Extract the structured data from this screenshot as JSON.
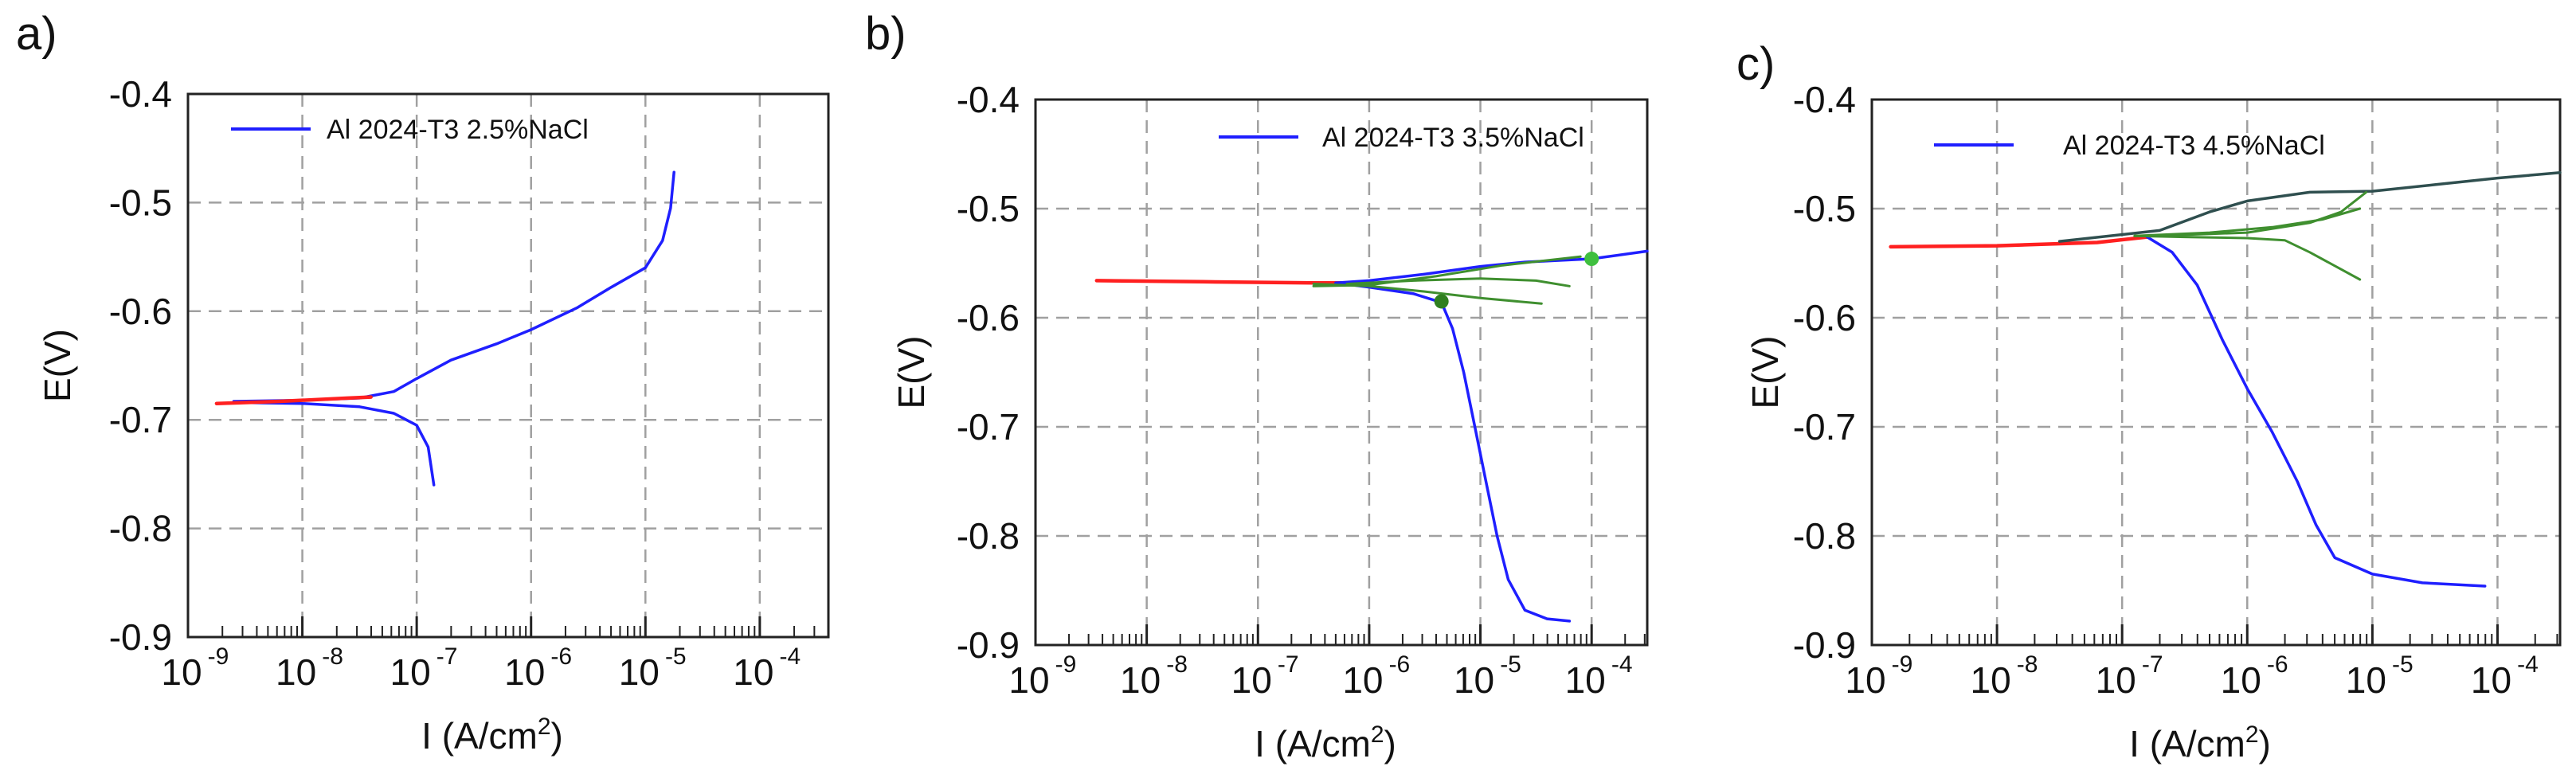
{
  "figure": {
    "colors": {
      "blue": "#1f1fff",
      "red": "#ff2020",
      "green": "#3f8f2f",
      "dark": "#2f4f4f",
      "grid": "#a0a0a0"
    }
  },
  "chart_data": [
    {
      "type": "line",
      "panel_label": "a)",
      "legend": "Al 2024-T3  2.5%NaCl",
      "xlabel": "I (A/cm",
      "xlabel_sup": "2",
      "xlabel_end": ")",
      "ylabel": "E(V)",
      "xscale": "log",
      "xlim_exp": [
        -9,
        -3.4
      ],
      "ylim": [
        -0.9,
        -0.4
      ],
      "xticks_exp": [
        -9,
        -8,
        -7,
        -6,
        -5,
        -4
      ],
      "xtick_base": "10",
      "xtick_exps": [
        "-9",
        "-8",
        "-7",
        "-6",
        "-5",
        "-4"
      ],
      "yticks": [
        "-0.4",
        "-0.5",
        "-0.6",
        "-0.7",
        "-0.8",
        "-0.9"
      ],
      "ytick_values": [
        -0.4,
        -0.5,
        -0.6,
        -0.7,
        -0.8,
        -0.9
      ],
      "series": [
        {
          "name": "anodic",
          "color": "#1f1fff",
          "points": [
            [
              -8.6,
              -0.683
            ],
            [
              -8.0,
              -0.682
            ],
            [
              -7.5,
              -0.68
            ],
            [
              -7.2,
              -0.674
            ],
            [
              -7.0,
              -0.662
            ],
            [
              -6.7,
              -0.645
            ],
            [
              -6.3,
              -0.63
            ],
            [
              -6.0,
              -0.617
            ],
            [
              -5.6,
              -0.597
            ],
            [
              -5.3,
              -0.578
            ],
            [
              -5.0,
              -0.56
            ],
            [
              -4.85,
              -0.535
            ],
            [
              -4.78,
              -0.505
            ],
            [
              -4.75,
              -0.472
            ]
          ]
        },
        {
          "name": "cathodic",
          "color": "#1f1fff",
          "points": [
            [
              -8.6,
              -0.684
            ],
            [
              -8.0,
              -0.685
            ],
            [
              -7.5,
              -0.688
            ],
            [
              -7.2,
              -0.694
            ],
            [
              -7.0,
              -0.705
            ],
            [
              -6.9,
              -0.725
            ],
            [
              -6.85,
              -0.76
            ]
          ]
        },
        {
          "name": "fit",
          "color": "#ff2020",
          "points": [
            [
              -8.75,
              -0.685
            ],
            [
              -8.2,
              -0.683
            ],
            [
              -7.6,
              -0.68
            ],
            [
              -7.4,
              -0.679
            ]
          ]
        }
      ],
      "markers": []
    },
    {
      "type": "line",
      "panel_label": "b)",
      "legend": "Al 2024-T3  3.5%NaCl",
      "xlabel": "I (A/cm",
      "xlabel_sup": "2",
      "xlabel_end": ")",
      "ylabel": "E(V)",
      "xscale": "log",
      "xlim_exp": [
        -9,
        -3.5
      ],
      "ylim": [
        -0.9,
        -0.4
      ],
      "xticks_exp": [
        -9,
        -8,
        -7,
        -6,
        -5,
        -4
      ],
      "xtick_base": "10",
      "xtick_exps": [
        "-9",
        "-8",
        "-7",
        "-6",
        "-5",
        "-4"
      ],
      "yticks": [
        "-0.4",
        "-0.5",
        "-0.6",
        "-0.7",
        "-0.8",
        "-0.9"
      ],
      "ytick_values": [
        -0.4,
        -0.5,
        -0.6,
        -0.7,
        -0.8,
        -0.9
      ],
      "series": [
        {
          "name": "fit",
          "color": "#ff2020",
          "points": [
            [
              -8.45,
              -0.566
            ],
            [
              -7.5,
              -0.567
            ],
            [
              -6.5,
              -0.568
            ],
            [
              -6.2,
              -0.568
            ]
          ]
        },
        {
          "name": "anodic",
          "color": "#1f1fff",
          "points": [
            [
              -6.3,
              -0.568
            ],
            [
              -6.0,
              -0.566
            ],
            [
              -5.5,
              -0.56
            ],
            [
              -5.0,
              -0.553
            ],
            [
              -4.6,
              -0.549
            ],
            [
              -4.0,
              -0.546
            ],
            [
              -3.5,
              -0.539
            ]
          ]
        },
        {
          "name": "cathodic",
          "color": "#1f1fff",
          "points": [
            [
              -6.3,
              -0.568
            ],
            [
              -6.0,
              -0.572
            ],
            [
              -5.6,
              -0.578
            ],
            [
              -5.35,
              -0.586
            ],
            [
              -5.25,
              -0.61
            ],
            [
              -5.15,
              -0.65
            ],
            [
              -5.05,
              -0.7
            ],
            [
              -4.95,
              -0.75
            ],
            [
              -4.85,
              -0.8
            ],
            [
              -4.75,
              -0.84
            ],
            [
              -4.6,
              -0.868
            ],
            [
              -4.4,
              -0.876
            ],
            [
              -4.2,
              -0.878
            ]
          ]
        },
        {
          "name": "tafel-1",
          "color": "#3f8f2f",
          "points": [
            [
              -6.5,
              -0.571
            ],
            [
              -6.0,
              -0.57
            ],
            [
              -5.4,
              -0.562
            ],
            [
              -4.8,
              -0.552
            ],
            [
              -4.1,
              -0.544
            ]
          ]
        },
        {
          "name": "tafel-2",
          "color": "#3f8f2f",
          "points": [
            [
              -6.5,
              -0.569
            ],
            [
              -6.0,
              -0.571
            ],
            [
              -5.5,
              -0.576
            ],
            [
              -5.0,
              -0.582
            ],
            [
              -4.45,
              -0.587
            ]
          ]
        },
        {
          "name": "tafel-3",
          "color": "#3f8f2f",
          "points": [
            [
              -6.2,
              -0.569
            ],
            [
              -5.6,
              -0.566
            ],
            [
              -5.0,
              -0.564
            ],
            [
              -4.5,
              -0.566
            ],
            [
              -4.2,
              -0.571
            ]
          ]
        }
      ],
      "markers": [
        {
          "x": -5.35,
          "y": -0.585,
          "color": "#2f7f1f"
        },
        {
          "x": -4.0,
          "y": -0.546,
          "color": "#3fbf3f"
        }
      ]
    },
    {
      "type": "line",
      "panel_label": "c)",
      "legend": "Al 2024-T3  4.5%NaCl",
      "xlabel": "I (A/cm",
      "xlabel_sup": "2",
      "xlabel_end": ")",
      "ylabel": "E(V)",
      "xscale": "log",
      "xlim_exp": [
        -9,
        -3.5
      ],
      "ylim": [
        -0.9,
        -0.4
      ],
      "xticks_exp": [
        -9,
        -8,
        -7,
        -6,
        -5,
        -4
      ],
      "xtick_base": "10",
      "xtick_exps": [
        "-9",
        "-8",
        "-7",
        "-6",
        "-5",
        "-4"
      ],
      "yticks": [
        "-0.4",
        "-0.5",
        "-0.6",
        "-0.7",
        "-0.8",
        "-0.9"
      ],
      "ytick_values": [
        -0.4,
        -0.5,
        -0.6,
        -0.7,
        -0.8,
        -0.9
      ],
      "series": [
        {
          "name": "fit",
          "color": "#ff2020",
          "points": [
            [
              -8.85,
              -0.535
            ],
            [
              -8.0,
              -0.534
            ],
            [
              -7.2,
              -0.531
            ],
            [
              -6.8,
              -0.526
            ]
          ]
        },
        {
          "name": "anodic",
          "color": "#2f4f4f",
          "points": [
            [
              -7.5,
              -0.53
            ],
            [
              -6.7,
              -0.52
            ],
            [
              -6.3,
              -0.503
            ],
            [
              -6.0,
              -0.493
            ],
            [
              -5.5,
              -0.485
            ],
            [
              -5.0,
              -0.484
            ],
            [
              -4.5,
              -0.478
            ],
            [
              -4.0,
              -0.472
            ],
            [
              -3.5,
              -0.467
            ]
          ]
        },
        {
          "name": "cathodic",
          "color": "#1f1fff",
          "points": [
            [
              -6.8,
              -0.526
            ],
            [
              -6.6,
              -0.54
            ],
            [
              -6.4,
              -0.57
            ],
            [
              -6.2,
              -0.62
            ],
            [
              -6.0,
              -0.665
            ],
            [
              -5.8,
              -0.705
            ],
            [
              -5.6,
              -0.75
            ],
            [
              -5.45,
              -0.79
            ],
            [
              -5.3,
              -0.82
            ],
            [
              -5.0,
              -0.835
            ],
            [
              -4.6,
              -0.843
            ],
            [
              -4.1,
              -0.846
            ]
          ]
        },
        {
          "name": "tafel-1",
          "color": "#3f8f2f",
          "points": [
            [
              -6.9,
              -0.525
            ],
            [
              -6.5,
              -0.524
            ],
            [
              -6.0,
              -0.522
            ],
            [
              -5.5,
              -0.513
            ],
            [
              -5.25,
              -0.503
            ],
            [
              -5.05,
              -0.485
            ]
          ]
        },
        {
          "name": "tafel-2",
          "color": "#3f8f2f",
          "points": [
            [
              -6.9,
              -0.525
            ],
            [
              -6.5,
              -0.526
            ],
            [
              -6.0,
              -0.527
            ],
            [
              -5.7,
              -0.529
            ],
            [
              -5.5,
              -0.54
            ],
            [
              -5.1,
              -0.565
            ]
          ]
        },
        {
          "name": "tafel-3",
          "color": "#3f8f2f",
          "points": [
            [
              -6.9,
              -0.525
            ],
            [
              -6.3,
              -0.522
            ],
            [
              -5.8,
              -0.517
            ],
            [
              -5.4,
              -0.51
            ],
            [
              -5.1,
              -0.5
            ]
          ]
        }
      ],
      "markers": []
    }
  ]
}
